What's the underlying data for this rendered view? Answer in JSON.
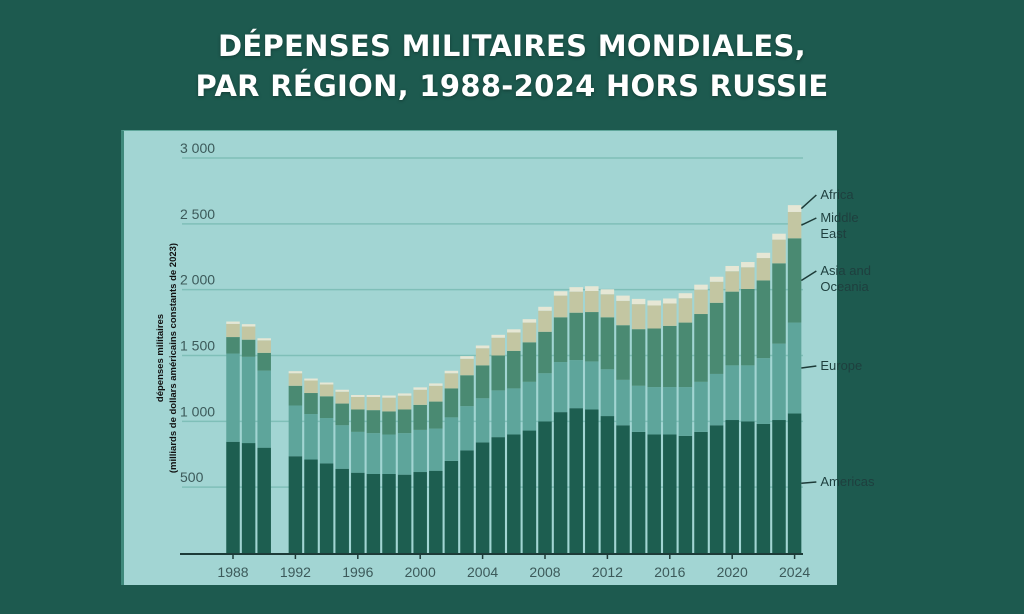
{
  "header": {
    "title_line1": "DÉPENSES MILITAIRES MONDIALES,",
    "title_line2": "PAR RÉGION, 1988-2024 HORS RUSSIE"
  },
  "chart_data": {
    "type": "bar",
    "stacked": true,
    "title": "DÉPENSES MILITAIRES MONDIALES, PAR RÉGION, 1988-2024 HORS RUSSIE",
    "ylabel_line1": "dépenses militaires",
    "ylabel_line2": "(milliards de dollars américains constants de 2023)",
    "xlabel": "",
    "ylim": [
      0,
      3000
    ],
    "yticks": [
      500,
      1000,
      1500,
      2000,
      2500,
      3000
    ],
    "ytick_labels": [
      "500",
      "1 000",
      "1 500",
      "2 000",
      "2 500",
      "3 000"
    ],
    "xtick_labels": [
      "1988",
      "1992",
      "1996",
      "2000",
      "2004",
      "2008",
      "2012",
      "2016",
      "2020",
      "2024"
    ],
    "grid": true,
    "legend_placement": "right (inline labels)",
    "categories": [
      "1988",
      "1989",
      "1990",
      "1991",
      "1992",
      "1993",
      "1994",
      "1995",
      "1996",
      "1997",
      "1998",
      "1999",
      "2000",
      "2001",
      "2002",
      "2003",
      "2004",
      "2005",
      "2006",
      "2007",
      "2008",
      "2009",
      "2010",
      "2011",
      "2012",
      "2013",
      "2014",
      "2015",
      "2016",
      "2017",
      "2018",
      "2019",
      "2020",
      "2021",
      "2022",
      "2023",
      "2024"
    ],
    "series": [
      {
        "name": "Americas",
        "color": "#1d5e50",
        "values": [
          845,
          835,
          800,
          null,
          735,
          710,
          680,
          640,
          610,
          600,
          600,
          595,
          615,
          625,
          700,
          780,
          840,
          880,
          900,
          930,
          1000,
          1070,
          1100,
          1090,
          1040,
          970,
          920,
          900,
          900,
          890,
          920,
          970,
          1010,
          1000,
          980,
          1010,
          1060
        ]
      },
      {
        "name": "Europe",
        "color": "#5ea59b",
        "values": [
          670,
          655,
          585,
          null,
          385,
          345,
          345,
          330,
          310,
          310,
          300,
          315,
          320,
          320,
          330,
          335,
          335,
          355,
          350,
          370,
          365,
          380,
          365,
          365,
          355,
          345,
          350,
          360,
          360,
          370,
          380,
          390,
          415,
          425,
          500,
          580,
          690
        ]
      },
      {
        "name": "Asia and Oceania",
        "color": "#4a8a72",
        "values": [
          125,
          130,
          135,
          null,
          150,
          160,
          165,
          165,
          170,
          175,
          175,
          180,
          190,
          205,
          220,
          235,
          250,
          265,
          285,
          300,
          315,
          340,
          360,
          375,
          395,
          415,
          430,
          445,
          465,
          490,
          515,
          540,
          560,
          580,
          590,
          610,
          640
        ]
      },
      {
        "name": "Middle East",
        "color": "#c3c6a2",
        "values": [
          100,
          100,
          95,
          null,
          95,
          95,
          90,
          90,
          95,
          100,
          105,
          105,
          115,
          120,
          115,
          125,
          130,
          135,
          140,
          150,
          160,
          165,
          160,
          160,
          175,
          185,
          190,
          175,
          170,
          185,
          185,
          160,
          155,
          165,
          170,
          180,
          200
        ]
      },
      {
        "name": "Africa",
        "color": "#e6e7d5",
        "values": [
          18,
          18,
          16,
          null,
          16,
          15,
          15,
          15,
          15,
          15,
          16,
          17,
          18,
          18,
          19,
          20,
          21,
          22,
          24,
          26,
          30,
          33,
          34,
          36,
          38,
          40,
          40,
          38,
          38,
          38,
          38,
          38,
          40,
          40,
          40,
          45,
          52
        ]
      }
    ]
  }
}
